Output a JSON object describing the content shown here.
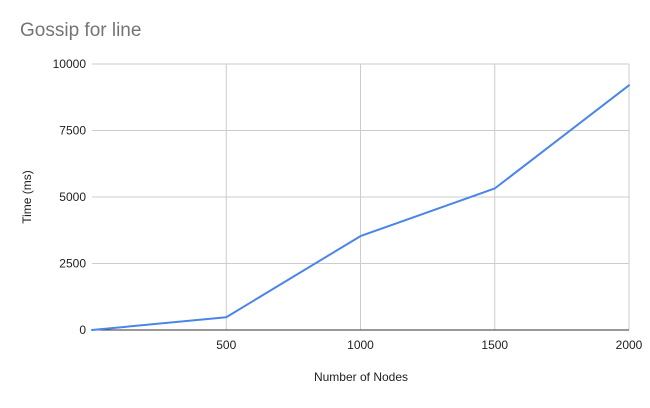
{
  "chart_data": {
    "type": "line",
    "title": "Gossip for line",
    "xlabel": "Number of Nodes",
    "ylabel": "Time (ms)",
    "x": [
      0,
      500,
      1000,
      1500,
      2000
    ],
    "x_ticks": [
      500,
      1000,
      1500,
      2000
    ],
    "y_ticks": [
      0,
      2500,
      5000,
      7500,
      10000
    ],
    "xlim": [
      0,
      2000
    ],
    "ylim": [
      0,
      10000
    ],
    "grid": true,
    "legend": "none",
    "series": [
      {
        "values": [
          0,
          480,
          3530,
          5320,
          9200
        ],
        "color": "#4a86e8"
      }
    ],
    "colors": {
      "grid": "#cccccc",
      "axis": "#333333",
      "title": "#757575",
      "text": "#222222"
    }
  }
}
